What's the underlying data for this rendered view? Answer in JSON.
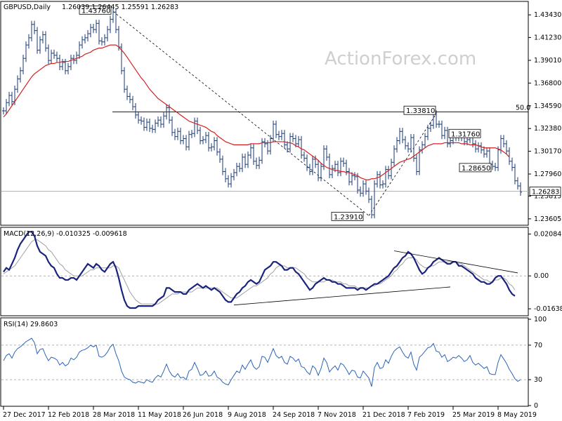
{
  "header": {
    "symbol": "GBPUSD,Daily",
    "ohlc": "1.26039 1.26445 1.25591 1.26283"
  },
  "watermark": "ActionForex.com",
  "chart_data": [
    {
      "type": "line",
      "name": "price",
      "title": "GBPUSD,Daily  1.26039 1.26445 1.25591 1.26283",
      "x_tick_labels": [
        "27 Dec 2017",
        "12 Feb 2018",
        "28 Mar 2018",
        "11 May 2018",
        "26 Jun 2018",
        "9 Aug 2018",
        "24 Sep 2018",
        "7 Nov 2018",
        "21 Dec 2018",
        "7 Feb 2019",
        "25 Mar 2019",
        "8 May 2019"
      ],
      "y_tick_labels": [
        "1.43430",
        "1.41230",
        "1.39010",
        "1.36800",
        "1.34590",
        "1.32380",
        "1.30170",
        "1.27960",
        "1.25815",
        "1.23605"
      ],
      "ylim": [
        1.2305,
        1.446
      ],
      "current_price": "1.26283",
      "level_50": "50.0",
      "level_50_value": 1.34,
      "annotations": [
        {
          "text": "1.43760",
          "x": 39,
          "y": 1.4376
        },
        {
          "text": "1.23910",
          "x": 130,
          "y": 1.2391
        },
        {
          "text": "1.33810",
          "x": 154,
          "y": 1.3381
        },
        {
          "text": "1.31760",
          "x": 170,
          "y": 1.3176
        },
        {
          "text": "1.28650",
          "x": 174,
          "y": 1.2865
        }
      ],
      "close": [
        1.341,
        1.349,
        1.356,
        1.35,
        1.362,
        1.372,
        1.38,
        1.392,
        1.405,
        1.412,
        1.425,
        1.419,
        1.4,
        1.41,
        1.415,
        1.402,
        1.39,
        1.397,
        1.395,
        1.392,
        1.384,
        1.388,
        1.38,
        1.384,
        1.392,
        1.39,
        1.395,
        1.405,
        1.41,
        1.412,
        1.416,
        1.422,
        1.42,
        1.426,
        1.409,
        1.408,
        1.412,
        1.42,
        1.43,
        1.437,
        1.42,
        1.403,
        1.38,
        1.362,
        1.355,
        1.352,
        1.345,
        1.337,
        1.332,
        1.331,
        1.325,
        1.33,
        1.324,
        1.323,
        1.329,
        1.332,
        1.328,
        1.336,
        1.344,
        1.332,
        1.32,
        1.316,
        1.321,
        1.312,
        1.314,
        1.306,
        1.318,
        1.319,
        1.331,
        1.322,
        1.312,
        1.313,
        1.317,
        1.305,
        1.306,
        1.312,
        1.301,
        1.294,
        1.282,
        1.275,
        1.27,
        1.277,
        1.281,
        1.287,
        1.285,
        1.296,
        1.289,
        1.298,
        1.305,
        1.292,
        1.288,
        1.293,
        1.311,
        1.309,
        1.302,
        1.314,
        1.328,
        1.318,
        1.316,
        1.319,
        1.308,
        1.304,
        1.316,
        1.314,
        1.309,
        1.313,
        1.298,
        1.295,
        1.286,
        1.282,
        1.294,
        1.289,
        1.276,
        1.287,
        1.304,
        1.296,
        1.279,
        1.285,
        1.289,
        1.281,
        1.292,
        1.29,
        1.282,
        1.272,
        1.278,
        1.277,
        1.264,
        1.261,
        1.27,
        1.263,
        1.255,
        1.24,
        1.27,
        1.279,
        1.269,
        1.27,
        1.284,
        1.278,
        1.291,
        1.304,
        1.312,
        1.321,
        1.313,
        1.307,
        1.304,
        1.315,
        1.295,
        1.282,
        1.303,
        1.308,
        1.316,
        1.324,
        1.327,
        1.338,
        1.328,
        1.328,
        1.317,
        1.322,
        1.309,
        1.312,
        1.317,
        1.315,
        1.319,
        1.315,
        1.311,
        1.313,
        1.319,
        1.309,
        1.304,
        1.307,
        1.303,
        1.299,
        1.302,
        1.289,
        1.287,
        1.286,
        1.303,
        1.314,
        1.309,
        1.302,
        1.292,
        1.286,
        1.273,
        1.268,
        1.262
      ],
      "ma": [
        1.335,
        1.338,
        1.342,
        1.346,
        1.35,
        1.354,
        1.358,
        1.362,
        1.366,
        1.37,
        1.374,
        1.377,
        1.379,
        1.381,
        1.383,
        1.385,
        1.386,
        1.387,
        1.387,
        1.388,
        1.388,
        1.389,
        1.389,
        1.389,
        1.39,
        1.391,
        1.392,
        1.393,
        1.394,
        1.396,
        1.397,
        1.398,
        1.4,
        1.401,
        1.402,
        1.402,
        1.403,
        1.404,
        1.405,
        1.405,
        1.405,
        1.403,
        1.4,
        1.397,
        1.393,
        1.389,
        1.385,
        1.381,
        1.377,
        1.373,
        1.37,
        1.366,
        1.362,
        1.359,
        1.356,
        1.353,
        1.351,
        1.349,
        1.347,
        1.345,
        1.343,
        1.341,
        1.339,
        1.337,
        1.335,
        1.333,
        1.331,
        1.33,
        1.329,
        1.328,
        1.327,
        1.326,
        1.325,
        1.323,
        1.321,
        1.32,
        1.317,
        1.315,
        1.313,
        1.311,
        1.31,
        1.309,
        1.308,
        1.308,
        1.308,
        1.308,
        1.308,
        1.308,
        1.309,
        1.309,
        1.309,
        1.309,
        1.31,
        1.31,
        1.31,
        1.31,
        1.311,
        1.311,
        1.311,
        1.311,
        1.311,
        1.31,
        1.31,
        1.309,
        1.307,
        1.306,
        1.304,
        1.303,
        1.301,
        1.299,
        1.297,
        1.295,
        1.293,
        1.29,
        1.288,
        1.286,
        1.285,
        1.284,
        1.283,
        1.283,
        1.282,
        1.282,
        1.281,
        1.281,
        1.28,
        1.279,
        1.278,
        1.276,
        1.275,
        1.274,
        1.274,
        1.275,
        1.275,
        1.276,
        1.277,
        1.279,
        1.281,
        1.283,
        1.285,
        1.287,
        1.289,
        1.291,
        1.292,
        1.293,
        1.294,
        1.295,
        1.297,
        1.299,
        1.301,
        1.303,
        1.305,
        1.307,
        1.308,
        1.309,
        1.309,
        1.309,
        1.309,
        1.31,
        1.31,
        1.31,
        1.31,
        1.31,
        1.31,
        1.309,
        1.309,
        1.309,
        1.308,
        1.308,
        1.308,
        1.307,
        1.306,
        1.305,
        1.305,
        1.305,
        1.305,
        1.305,
        1.304,
        1.303,
        1.301,
        1.299,
        1.296
      ]
    },
    {
      "type": "line",
      "name": "MACD",
      "title": "MACD(12,26,9) -0.010325 -0.009618",
      "y_tick_labels": [
        "0.020848",
        "0.00",
        "-0.016389"
      ],
      "ylim": [
        -0.0195,
        0.0235
      ],
      "macd": [
        0.002,
        0.004,
        0.003,
        0.006,
        0.009,
        0.013,
        0.016,
        0.018,
        0.02,
        0.022,
        0.022,
        0.02,
        0.015,
        0.012,
        0.011,
        0.01,
        0.007,
        0.005,
        0.004,
        0.001,
        -0.001,
        -0.001,
        -0.002,
        -0.002,
        -0.001,
        -0.001,
        -0.002,
        0.0,
        0.002,
        0.004,
        0.006,
        0.005,
        0.004,
        0.006,
        0.005,
        0.003,
        0.002,
        0.004,
        0.006,
        0.007,
        0.004,
        -0.001,
        -0.007,
        -0.012,
        -0.015,
        -0.016,
        -0.016,
        -0.016,
        -0.015,
        -0.015,
        -0.015,
        -0.015,
        -0.015,
        -0.015,
        -0.014,
        -0.012,
        -0.011,
        -0.01,
        -0.006,
        -0.006,
        -0.007,
        -0.008,
        -0.008,
        -0.008,
        -0.009,
        -0.009,
        -0.007,
        -0.006,
        -0.005,
        -0.004,
        -0.005,
        -0.006,
        -0.005,
        -0.006,
        -0.007,
        -0.006,
        -0.007,
        -0.008,
        -0.01,
        -0.012,
        -0.013,
        -0.013,
        -0.011,
        -0.009,
        -0.008,
        -0.006,
        -0.005,
        -0.003,
        -0.002,
        -0.003,
        -0.004,
        -0.003,
        0.0,
        0.003,
        0.004,
        0.005,
        0.007,
        0.007,
        0.006,
        0.005,
        0.003,
        0.003,
        0.004,
        0.004,
        0.002,
        0.001,
        -0.001,
        -0.003,
        -0.005,
        -0.007,
        -0.006,
        -0.004,
        -0.003,
        -0.002,
        -0.001,
        -0.002,
        -0.002,
        -0.003,
        -0.003,
        -0.004,
        -0.004,
        -0.005,
        -0.006,
        -0.006,
        -0.006,
        -0.006,
        -0.007,
        -0.006,
        -0.006,
        -0.007,
        -0.006,
        -0.005,
        -0.004,
        -0.004,
        -0.003,
        -0.002,
        -0.001,
        0.0,
        0.002,
        0.004,
        0.005,
        0.007,
        0.009,
        0.01,
        0.012,
        0.011,
        0.009,
        0.006,
        0.003,
        0.001,
        0.002,
        0.004,
        0.005,
        0.007,
        0.008,
        0.009,
        0.008,
        0.007,
        0.006,
        0.006,
        0.007,
        0.007,
        0.005,
        0.005,
        0.004,
        0.003,
        0.002,
        0.001,
        -0.001,
        -0.002,
        -0.003,
        -0.003,
        -0.004,
        -0.004,
        -0.003,
        -0.001,
        0.0,
        0.0,
        -0.002,
        -0.004,
        -0.007,
        -0.009,
        -0.01
      ],
      "signal": [
        0.001,
        0.002,
        0.003,
        0.004,
        0.005,
        0.007,
        0.009,
        0.011,
        0.013,
        0.015,
        0.017,
        0.018,
        0.018,
        0.017,
        0.016,
        0.015,
        0.013,
        0.012,
        0.01,
        0.008,
        0.006,
        0.005,
        0.003,
        0.002,
        0.001,
        0.0,
        0.0,
        0.0,
        0.0,
        0.001,
        0.002,
        0.003,
        0.003,
        0.004,
        0.004,
        0.004,
        0.004,
        0.004,
        0.004,
        0.005,
        0.005,
        0.004,
        0.001,
        -0.002,
        -0.005,
        -0.008,
        -0.01,
        -0.012,
        -0.013,
        -0.014,
        -0.014,
        -0.014,
        -0.014,
        -0.014,
        -0.014,
        -0.014,
        -0.013,
        -0.012,
        -0.011,
        -0.01,
        -0.009,
        -0.009,
        -0.009,
        -0.008,
        -0.008,
        -0.008,
        -0.008,
        -0.008,
        -0.007,
        -0.006,
        -0.006,
        -0.006,
        -0.006,
        -0.006,
        -0.006,
        -0.006,
        -0.006,
        -0.007,
        -0.008,
        -0.009,
        -0.01,
        -0.011,
        -0.011,
        -0.011,
        -0.01,
        -0.009,
        -0.008,
        -0.007,
        -0.006,
        -0.005,
        -0.005,
        -0.004,
        -0.003,
        -0.002,
        -0.001,
        0.001,
        0.002,
        0.004,
        0.005,
        0.005,
        0.005,
        0.004,
        0.004,
        0.004,
        0.004,
        0.003,
        0.002,
        0.001,
        -0.001,
        -0.002,
        -0.003,
        -0.003,
        -0.003,
        -0.003,
        -0.003,
        -0.002,
        -0.002,
        -0.002,
        -0.003,
        -0.003,
        -0.003,
        -0.004,
        -0.004,
        -0.005,
        -0.005,
        -0.005,
        -0.006,
        -0.006,
        -0.006,
        -0.006,
        -0.006,
        -0.005,
        -0.005,
        -0.004,
        -0.004,
        -0.003,
        -0.002,
        -0.001,
        0.0,
        0.002,
        0.003,
        0.005,
        0.006,
        0.008,
        0.009,
        0.009,
        0.009,
        0.008,
        0.006,
        0.005,
        0.004,
        0.004,
        0.005,
        0.005,
        0.006,
        0.007,
        0.007,
        0.007,
        0.007,
        0.007,
        0.007,
        0.007,
        0.006,
        0.006,
        0.005,
        0.004,
        0.003,
        0.002,
        0.001,
        0.0,
        -0.001,
        -0.002,
        -0.002,
        -0.003,
        -0.003,
        -0.002,
        -0.002,
        -0.001,
        -0.001,
        -0.002,
        -0.004,
        -0.005,
        -0.007
      ],
      "trendlines": [
        {
          "x0": 82,
          "y0": -0.0145,
          "x1": 159,
          "y1": -0.0055
        },
        {
          "x0": 139,
          "y0": 0.0125,
          "x1": 183,
          "y1": 0.0015
        }
      ]
    },
    {
      "type": "line",
      "name": "RSI",
      "title": "RSI(14) 29.8603",
      "y_tick_labels": [
        "100",
        "70",
        "30",
        "0"
      ],
      "ylim": [
        0,
        100
      ],
      "levels": [
        70,
        30
      ],
      "values": [
        52,
        58,
        60,
        55,
        62,
        66,
        68,
        71,
        74,
        76,
        78,
        73,
        60,
        65,
        66,
        58,
        52,
        56,
        55,
        53,
        47,
        50,
        46,
        48,
        55,
        53,
        56,
        62,
        64,
        65,
        67,
        70,
        68,
        70,
        57,
        56,
        58,
        62,
        68,
        71,
        60,
        52,
        40,
        33,
        31,
        30,
        27,
        26,
        28,
        27,
        26,
        30,
        28,
        27,
        32,
        35,
        33,
        40,
        48,
        40,
        35,
        33,
        37,
        32,
        33,
        30,
        40,
        42,
        50,
        43,
        35,
        36,
        40,
        34,
        35,
        40,
        33,
        31,
        27,
        25,
        24,
        30,
        35,
        40,
        38,
        47,
        42,
        48,
        53,
        45,
        42,
        45,
        57,
        56,
        50,
        58,
        66,
        58,
        55,
        57,
        50,
        48,
        57,
        55,
        51,
        54,
        45,
        44,
        39,
        36,
        46,
        43,
        35,
        43,
        55,
        50,
        39,
        43,
        46,
        41,
        49,
        47,
        42,
        36,
        41,
        40,
        33,
        32,
        40,
        36,
        32,
        22,
        44,
        50,
        43,
        44,
        53,
        49,
        57,
        63,
        66,
        68,
        62,
        57,
        55,
        62,
        48,
        41,
        56,
        59,
        63,
        67,
        68,
        72,
        63,
        62,
        56,
        59,
        51,
        53,
        56,
        55,
        58,
        55,
        51,
        53,
        58,
        50,
        47,
        49,
        46,
        43,
        45,
        37,
        36,
        36,
        50,
        59,
        54,
        49,
        42,
        37,
        31,
        28,
        30
      ]
    }
  ]
}
